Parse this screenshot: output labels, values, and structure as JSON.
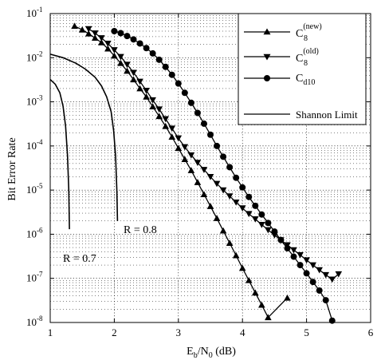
{
  "chart_data": {
    "type": "line",
    "xlabel": {
      "main": "E",
      "sub1": "b",
      "mid": "/N",
      "sub2": "0",
      "tail": " (dB)"
    },
    "ylabel": "Bit Error Rate",
    "xlim": [
      1,
      6
    ],
    "ylim": [
      1e-08,
      0.1
    ],
    "yscale": "log",
    "grid": true,
    "x_ticks": [
      "1",
      "2",
      "3",
      "4",
      "5",
      "6"
    ],
    "y_ticks": [
      {
        "base": "10",
        "exp": "-8"
      },
      {
        "base": "10",
        "exp": "-7"
      },
      {
        "base": "10",
        "exp": "-6"
      },
      {
        "base": "10",
        "exp": "-5"
      },
      {
        "base": "10",
        "exp": "-4"
      },
      {
        "base": "10",
        "exp": "-3"
      },
      {
        "base": "10",
        "exp": "-2"
      },
      {
        "base": "10",
        "exp": "-1"
      }
    ],
    "legend_position": "top-right",
    "legend": [
      {
        "base": "C",
        "sub": "8",
        "sup": "(new)",
        "marker": "triangle-up"
      },
      {
        "base": "C",
        "sub": "8",
        "sup": "(old)",
        "marker": "triangle-down"
      },
      {
        "base": "C",
        "sub": "d10",
        "sup": "",
        "marker": "circle"
      },
      {
        "base": "Shannon Limit",
        "sub": "",
        "sup": "",
        "marker": "none"
      }
    ],
    "annotations": [
      "R = 0.8",
      "R = 0.7"
    ],
    "series": [
      {
        "marker": "triangle-up",
        "x": [
          1.38,
          1.5,
          1.6,
          1.7,
          1.8,
          1.9,
          2.0,
          2.1,
          2.2,
          2.3,
          2.4,
          2.5,
          2.6,
          2.7,
          2.8,
          2.9,
          3.0,
          3.1,
          3.2,
          3.3,
          3.4,
          3.5,
          3.6,
          3.7,
          3.8,
          3.9,
          4.0,
          4.1,
          4.2,
          4.3,
          4.4,
          4.5,
          4.6,
          4.7
        ],
        "y": [
          0.052,
          0.043,
          0.035,
          0.028,
          0.022,
          0.016,
          0.011,
          0.0075,
          0.005,
          0.0032,
          0.002,
          0.0013,
          0.00078,
          0.00047,
          0.00028,
          0.00016,
          8.9e-05,
          5e-05,
          2.8e-05,
          1.5e-05,
          8e-06,
          4.3e-06,
          2.3e-06,
          1.2e-06,
          6.3e-07,
          3.3e-07,
          1.7e-07,
          9e-08,
          4.7e-08,
          2.5e-08,
          1.3e-08,
          7e-09,
          5e-09,
          3.6e-08
        ]
      },
      {
        "marker": "triangle-down",
        "x": [
          1.6,
          1.7,
          1.8,
          1.9,
          2.0,
          2.1,
          2.2,
          2.3,
          2.4,
          2.5,
          2.6,
          2.7,
          2.8,
          2.9,
          3.0,
          3.1,
          3.2,
          3.3,
          3.4,
          3.5,
          3.6,
          3.7,
          3.8,
          3.9,
          4.0,
          4.1,
          4.2,
          4.3,
          4.4,
          4.5,
          4.6,
          4.7,
          4.8,
          4.9,
          5.0,
          5.1,
          5.2,
          5.3,
          5.4,
          5.5
        ],
        "y": [
          0.045,
          0.036,
          0.028,
          0.021,
          0.015,
          0.0105,
          0.007,
          0.0046,
          0.0029,
          0.0018,
          0.0011,
          0.00068,
          0.00041,
          0.00025,
          0.00015,
          9.5e-05,
          6.2e-05,
          4.2e-05,
          2.9e-05,
          2e-05,
          1.4e-05,
          1e-05,
          7.3e-06,
          5.3e-06,
          3.9e-06,
          2.9e-06,
          2.2e-06,
          1.65e-06,
          1.25e-06,
          9.6e-07,
          7.4e-07,
          5.7e-07,
          4.4e-07,
          3.4e-07,
          2.6e-07,
          2e-07,
          1.55e-07,
          1.2e-07,
          9.5e-08,
          1.25e-07
        ]
      },
      {
        "marker": "circle",
        "x": [
          2.0,
          2.1,
          2.2,
          2.3,
          2.4,
          2.5,
          2.6,
          2.7,
          2.8,
          2.9,
          3.0,
          3.1,
          3.2,
          3.3,
          3.4,
          3.5,
          3.6,
          3.7,
          3.8,
          3.9,
          4.0,
          4.1,
          4.2,
          4.3,
          4.4,
          4.5,
          4.6,
          4.7,
          4.8,
          4.9,
          5.0,
          5.1,
          5.2,
          5.3,
          5.4
        ],
        "y": [
          0.04,
          0.036,
          0.031,
          0.026,
          0.021,
          0.0165,
          0.0125,
          0.009,
          0.0062,
          0.0041,
          0.0026,
          0.0016,
          0.00095,
          0.00056,
          0.00032,
          0.00018,
          0.0001,
          5.7e-05,
          3.3e-05,
          1.9e-05,
          1.15e-05,
          7e-06,
          4.4e-06,
          2.8e-06,
          1.8e-06,
          1.15e-06,
          7.4e-07,
          4.8e-07,
          3.1e-07,
          2e-07,
          1.3e-07,
          8.3e-08,
          5.3e-08,
          3.2e-08,
          1.1e-08
        ]
      }
    ],
    "shannon_curves": [
      {
        "label": "R = 0.8",
        "x": [
          1.0,
          1.2,
          1.4,
          1.55,
          1.7,
          1.8,
          1.88,
          1.95,
          1.99,
          2.02,
          2.04,
          2.05
        ],
        "y": [
          0.012,
          0.01,
          0.0075,
          0.0055,
          0.0036,
          0.0023,
          0.0013,
          0.0006,
          0.00022,
          6e-05,
          1e-05,
          2e-06
        ]
      },
      {
        "label": "R = 0.7",
        "x": [
          1.0,
          1.08,
          1.15,
          1.2,
          1.24,
          1.27,
          1.29,
          1.3
        ],
        "y": [
          0.0032,
          0.0025,
          0.0016,
          0.0008,
          0.00028,
          6e-05,
          1e-05,
          1.3e-06
        ]
      }
    ]
  }
}
